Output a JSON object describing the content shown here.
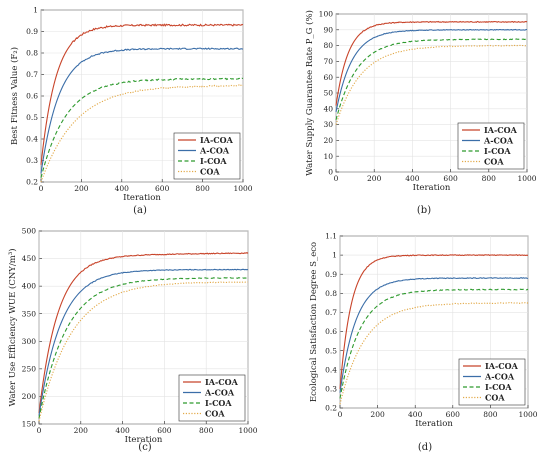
{
  "colors": {
    "IA-COA": "#c8442a",
    "A-COA": "#3b6ea8",
    "I-COA": "#2e9a2e",
    "COA": "#e2a948"
  },
  "chart_data": [
    {
      "type": "line",
      "caption": "(a)",
      "xlabel": "Iteration",
      "ylabel": "Best Fitness Value (F₂)",
      "xlim": [
        0,
        1000
      ],
      "ylim": [
        0.2,
        1
      ],
      "xticks": [
        0,
        200,
        400,
        600,
        800,
        1000
      ],
      "yticks": [
        0.2,
        0.3,
        0.4,
        0.5,
        0.6,
        0.7,
        0.8,
        0.9,
        1
      ],
      "legend_position": "bottom-right",
      "series": [
        {
          "name": "IA-COA",
          "start": 0.28,
          "end": 0.93,
          "tau": 75,
          "noise": 0.004,
          "style": "solid"
        },
        {
          "name": "A-COA",
          "start": 0.24,
          "end": 0.82,
          "tau": 90,
          "noise": 0.003,
          "style": "solid"
        },
        {
          "name": "I-COA",
          "start": 0.22,
          "end": 0.68,
          "tau": 125,
          "noise": 0.003,
          "style": "dashed"
        },
        {
          "name": "COA",
          "start": 0.2,
          "end": 0.65,
          "tau": 170,
          "noise": 0.003,
          "style": "dotted"
        }
      ]
    },
    {
      "type": "line",
      "caption": "(b)",
      "xlabel": "Iteration",
      "ylabel": "Water Supply Guarantee Rate P_G (%)",
      "xlim": [
        0,
        1000
      ],
      "ylim": [
        0,
        100
      ],
      "xticks": [
        0,
        200,
        400,
        600,
        800,
        1000
      ],
      "yticks": [
        0,
        10,
        20,
        30,
        40,
        50,
        60,
        70,
        80,
        90,
        100
      ],
      "legend_position": "bottom-right",
      "series": [
        {
          "name": "IA-COA",
          "start": 42,
          "end": 95,
          "tau": 65,
          "noise": 0.3,
          "style": "solid"
        },
        {
          "name": "A-COA",
          "start": 38,
          "end": 90,
          "tau": 85,
          "noise": 0.2,
          "style": "solid"
        },
        {
          "name": "I-COA",
          "start": 33,
          "end": 84,
          "tau": 110,
          "noise": 0.2,
          "style": "dashed"
        },
        {
          "name": "COA",
          "start": 30,
          "end": 80,
          "tau": 130,
          "noise": 0.2,
          "style": "dotted"
        }
      ]
    },
    {
      "type": "line",
      "caption": "(c)",
      "xlabel": "Iteration",
      "ylabel": "Water Use Efficiency WUE (CNY/m³)",
      "xlim": [
        0,
        1000
      ],
      "ylim": [
        150,
        500
      ],
      "xticks": [
        0,
        200,
        400,
        600,
        800,
        1000
      ],
      "yticks": [
        150,
        200,
        250,
        300,
        350,
        400,
        450,
        500
      ],
      "legend_position": "bottom-right",
      "series": [
        {
          "name": "IA-COA",
          "start": 170,
          "end": 455,
          "tau": 90,
          "noise": 0.8,
          "drift": 5,
          "style": "solid"
        },
        {
          "name": "A-COA",
          "start": 165,
          "end": 430,
          "tau": 105,
          "noise": 0.6,
          "drift": 0,
          "style": "solid"
        },
        {
          "name": "I-COA",
          "start": 160,
          "end": 415,
          "tau": 130,
          "noise": 0.6,
          "drift": 0,
          "style": "dashed"
        },
        {
          "name": "COA",
          "start": 155,
          "end": 408,
          "tau": 155,
          "noise": 0.6,
          "drift": 0,
          "style": "dotted"
        }
      ]
    },
    {
      "type": "line",
      "caption": "(d)",
      "xlabel": "Iteration",
      "ylabel": "Ecological Satisfaction Degree S_eco",
      "xlim": [
        0,
        1000
      ],
      "ylim": [
        0.2,
        1.1
      ],
      "xticks": [
        0,
        200,
        400,
        600,
        800,
        1000
      ],
      "yticks": [
        0.2,
        0.3,
        0.4,
        0.5,
        0.6,
        0.7,
        0.8,
        0.9,
        1,
        1.1
      ],
      "legend_position": "bottom-right",
      "series": [
        {
          "name": "IA-COA",
          "start": 0.3,
          "end": 1.0,
          "tau": 60,
          "noise": 0.002,
          "style": "solid"
        },
        {
          "name": "A-COA",
          "start": 0.28,
          "end": 0.88,
          "tau": 85,
          "noise": 0.002,
          "style": "solid"
        },
        {
          "name": "I-COA",
          "start": 0.25,
          "end": 0.82,
          "tau": 105,
          "noise": 0.002,
          "style": "dashed"
        },
        {
          "name": "COA",
          "start": 0.22,
          "end": 0.75,
          "tau": 130,
          "noise": 0.002,
          "style": "dotted"
        }
      ]
    }
  ]
}
